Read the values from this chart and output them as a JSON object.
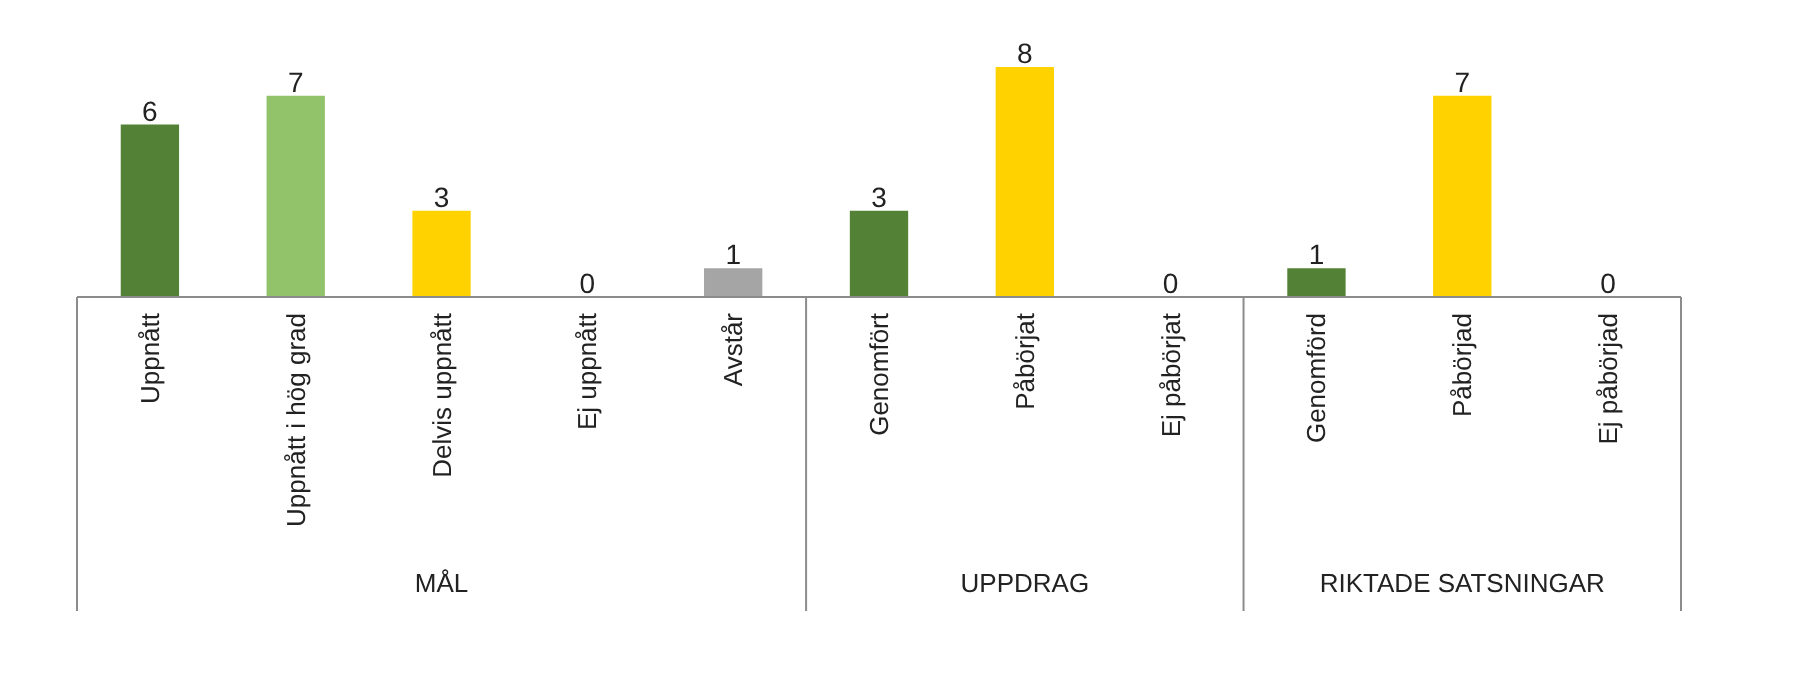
{
  "chart_data": {
    "type": "bar",
    "categories": [
      "Uppnått",
      "Uppnått i hög grad",
      "Delvis uppnått",
      "Ej uppnått",
      "Avstår",
      "Genomfört",
      "Påbörjat",
      "Ej påbörjat",
      "Genomförd",
      "Påbörjad",
      "Ej påbörjad"
    ],
    "values": [
      6,
      7,
      3,
      0,
      1,
      3,
      8,
      0,
      1,
      7,
      0
    ],
    "colors": [
      "#538135",
      "#92c36b",
      "#ffd200",
      "#ffd200",
      "#a5a5a5",
      "#538135",
      "#ffd200",
      "#ffd200",
      "#538135",
      "#ffd200",
      "#ffd200"
    ],
    "data_labels": true,
    "annotations": [
      "MÅL",
      "UPPDRAG",
      "RIKTADE SATSNINGAR"
    ]
  }
}
